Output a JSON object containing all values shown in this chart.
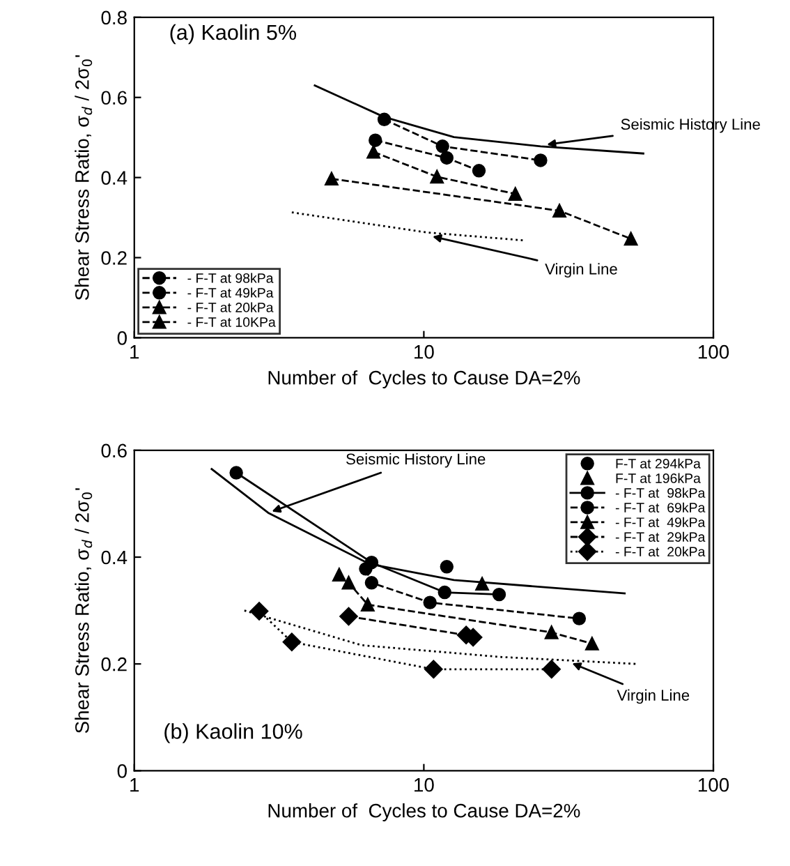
{
  "chart_data": [
    {
      "type": "line",
      "xlabel": "Number of  Cycles to Cause DA=2%",
      "ylabel": "Shear Stress Ratio, σ$_{d}$ / 2σ$_{0}$'",
      "log": "x",
      "xlim": [
        1,
        100
      ],
      "xticks": [
        1,
        10,
        100
      ],
      "ylim": [
        0,
        0.8
      ],
      "yticks": [
        0,
        0.2,
        0.4,
        0.6,
        0.8
      ],
      "grid": false,
      "legend": "bottom left",
      "annotations": [
        "(a) Kaolin 5%",
        {
          "text": "Seismic History Line",
          "x": 25.8,
          "y": 0.481
        },
        {
          "text": "Virgin Line",
          "x": 10.4,
          "y": 0.255
        }
      ],
      "series": [
        {
          "name": "- F-T at 98kPa",
          "color": "#000000",
          "marker": "circle",
          "line_style": "dashed",
          "x": [
            7.3,
            11.6,
            25.3
          ],
          "values": [
            0.545,
            0.478,
            0.443
          ]
        },
        {
          "name": "- F-T at 49kPa",
          "color": "#000000",
          "marker": "circle",
          "line_style": "dashed",
          "x": [
            6.8,
            12.0,
            15.5
          ],
          "values": [
            0.493,
            0.449,
            0.417
          ]
        },
        {
          "name": "- F-T at 20kPa",
          "color": "#000000",
          "marker": "triangle",
          "line_style": "dashed",
          "x": [
            6.7,
            11.1,
            20.7
          ],
          "values": [
            0.464,
            0.402,
            0.359
          ]
        },
        {
          "name": "- F-T at 10KPa",
          "color": "#000000",
          "marker": "triangle",
          "line_style": "dashed",
          "x": [
            4.8,
            29.4,
            51.9
          ],
          "values": [
            0.397,
            0.317,
            0.247
          ]
        },
        {
          "color": "#000000",
          "marker": "none",
          "line_style": "solid",
          "x": [
            4.2,
            7.3,
            12.7,
            25.3,
            57.3
          ],
          "values": [
            0.63,
            0.551,
            0.501,
            0.478,
            0.46
          ]
        },
        {
          "color": "#000000",
          "marker": "none",
          "line_style": "dotted",
          "x": [
            3.5,
            10.2,
            22.2
          ],
          "values": [
            0.313,
            0.263,
            0.243
          ]
        }
      ]
    },
    {
      "type": "line",
      "xlabel": "Number of  Cycles to Cause DA=2%",
      "ylabel": "Shear Stress Ratio, σ$_{d}$ / 2σ$_{0}$'",
      "log": "x",
      "xlim": [
        1,
        100
      ],
      "xticks": [
        1,
        10,
        100
      ],
      "ylim": [
        0,
        0.6
      ],
      "yticks": [
        0,
        0.2,
        0.4,
        0.6
      ],
      "grid": false,
      "legend": "top right",
      "annotations": [
        "(b) Kaolin 10%",
        {
          "text": "Seismic History Line",
          "x": 2.9,
          "y": 0.483
        },
        {
          "text": "Virgin Line",
          "x": 31.6,
          "y": 0.204
        }
      ],
      "series": [
        {
          "name": "F-T at 294kPa",
          "type": "scatter",
          "color": "#000000",
          "marker": "circle",
          "x": [
            12.0
          ],
          "values": [
            0.382
          ]
        },
        {
          "name": "F-T at 196kPa",
          "type": "scatter",
          "color": "#000000",
          "marker": "triangle",
          "x": [
            15.9
          ],
          "values": [
            0.35
          ]
        },
        {
          "name": "- F-T at  98kPa",
          "color": "#000000",
          "marker": "circle",
          "line_style": "solid",
          "x": [
            2.25,
            6.6,
            11.8,
            18.2
          ],
          "values": [
            0.558,
            0.39,
            0.334,
            0.33
          ]
        },
        {
          "name": "- F-T at  69kPa",
          "color": "#000000",
          "marker": "circle",
          "line_style": "dashed",
          "x": [
            6.3,
            6.6,
            10.5,
            34.4
          ],
          "values": [
            0.378,
            0.352,
            0.315,
            0.285
          ]
        },
        {
          "name": "- F-T at  49kPa",
          "color": "#000000",
          "marker": "triangle",
          "line_style": "dashed",
          "x": [
            5.1,
            5.5,
            6.4,
            27.6,
            38.1
          ],
          "values": [
            0.367,
            0.352,
            0.311,
            0.259,
            0.238
          ]
        },
        {
          "name": "- F-T at  29kPa",
          "color": "#000000",
          "marker": "diamond",
          "line_style": "dashed",
          "x": [
            5.5,
            14.0,
            14.8
          ],
          "values": [
            0.289,
            0.254,
            0.25
          ]
        },
        {
          "name": "- F-T at  20kPa",
          "color": "#000000",
          "marker": "diamond",
          "line_style": "dotted",
          "x": [
            2.7,
            3.5,
            10.8,
            27.6
          ],
          "values": [
            0.299,
            0.241,
            0.19,
            0.19
          ]
        },
        {
          "color": "#000000",
          "marker": "none",
          "line_style": "solid",
          "x": [
            1.85,
            2.9,
            6.5,
            12.7,
            49.4
          ],
          "values": [
            0.565,
            0.483,
            0.387,
            0.357,
            0.332
          ]
        },
        {
          "color": "#000000",
          "marker": "none",
          "line_style": "dotted",
          "x": [
            2.4,
            6.1,
            18.5,
            54.2
          ],
          "values": [
            0.3,
            0.235,
            0.213,
            0.2
          ]
        }
      ]
    }
  ]
}
